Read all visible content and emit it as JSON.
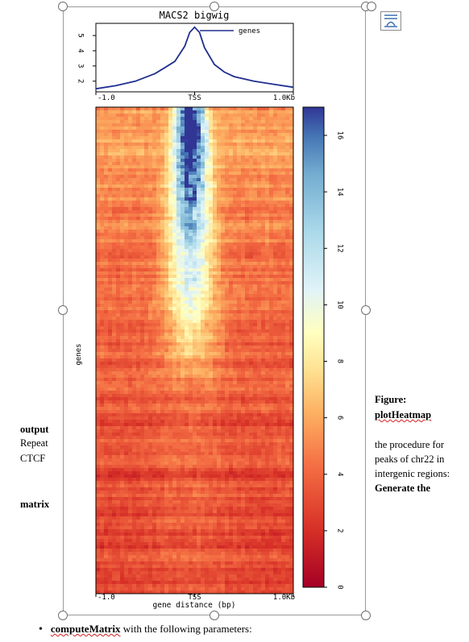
{
  "figure": {
    "profile_title": "MACS2 bigwig",
    "legend_label": "genes",
    "profile_yticks": [
      "5",
      "4",
      "3",
      "2"
    ],
    "profile_xticks": [
      "-1.0",
      "TSS",
      "1.0Kb"
    ],
    "heatmap_ylabel": "genes",
    "heatmap_xticks": [
      "-1.0",
      "TSS",
      "1.0Kb"
    ],
    "heatmap_xlabel": "gene distance (bp)",
    "colorbar_ticks": [
      "16",
      "14",
      "12",
      "10",
      "8",
      "6",
      "4",
      "2",
      "0"
    ],
    "colors": {
      "line": "#1f2f8f",
      "high": "#313695",
      "mid": "#ffffbf",
      "low": "#a50026"
    }
  },
  "chart_data": [
    {
      "type": "line",
      "title": "MACS2 bigwig",
      "series": [
        {
          "name": "genes",
          "x": [
            -1000,
            -800,
            -600,
            -400,
            -300,
            -200,
            -100,
            -50,
            0,
            50,
            100,
            200,
            300,
            400,
            600,
            800,
            1000
          ],
          "y": [
            1.5,
            1.7,
            2.0,
            2.5,
            2.9,
            3.3,
            4.3,
            5.2,
            5.55,
            5.2,
            4.2,
            3.1,
            2.6,
            2.3,
            2.0,
            1.8,
            1.6
          ]
        }
      ],
      "xticks": [
        "-1.0",
        "TSS",
        "1.0Kb"
      ],
      "yticks": [
        2,
        3,
        4,
        5
      ],
      "ylim": [
        1.3,
        5.8
      ],
      "legend": "top-right"
    },
    {
      "type": "heatmap",
      "ylabel": "genes",
      "xlabel": "gene distance (bp)",
      "xticks": [
        "-1.0",
        "TSS",
        "1.0Kb"
      ],
      "colorbar": {
        "min": 0,
        "max": 17,
        "ticks": [
          0,
          2,
          4,
          6,
          8,
          10,
          12,
          14,
          16
        ]
      }
    }
  ],
  "left_text": {
    "output": "output",
    "repeat": "Repeat",
    "ctcf": "CTCF",
    "matrix": "matrix"
  },
  "right_text": {
    "figure_label": "Figure:",
    "plotheatmap": "plotHeatmap",
    "line1": "the procedure for",
    "line2": "peaks of chr22 in",
    "line3": "intergenic regions:",
    "generate": "Generate the"
  },
  "bullet": {
    "code": "computeMatrix",
    "rest": " with the following parameters:"
  },
  "layout_options_icon": "layout-options-icon"
}
